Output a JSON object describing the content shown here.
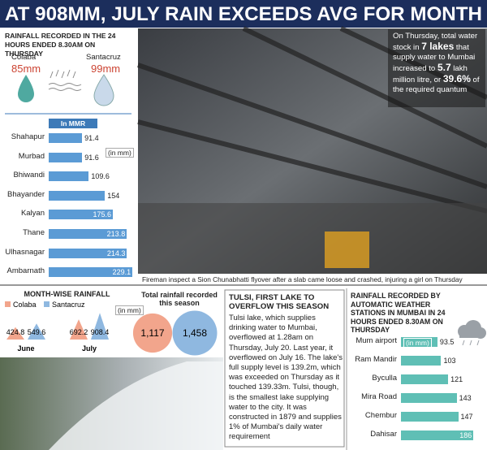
{
  "headline": "AT 908MM, JULY RAIN EXCEEDS AVG FOR MONTH",
  "left_panel": {
    "title": "RAINFALL RECORDED IN THE 24 HOURS ENDED 8.30AM ON THURSDAY",
    "stations": [
      {
        "name": "Colaba",
        "value": "85mm"
      },
      {
        "name": "Santacruz",
        "value": "99mm"
      }
    ],
    "mmr_label": "In MMR",
    "unit": "(in mm)",
    "color": "#5b9bd5",
    "categories": [
      "Shahapur",
      "Murbad",
      "Bhiwandi",
      "Bhayander",
      "Kalyan",
      "Thane",
      "Ulhasnagar",
      "Ambarnath"
    ],
    "values": [
      91.4,
      91.6,
      109.6,
      154,
      175.6,
      213.8,
      214.3,
      229.1
    ]
  },
  "photo": {
    "overlay": [
      "On Thursday, total water stock in ",
      "7 lakes",
      " that supply water to Mumbai increased to ",
      "5.7",
      " lakh million litre, or ",
      "39.6%",
      " of the required quantum"
    ],
    "caption": "Fireman inspect a Sion Chunabhatti flyover after a slab came loose and crashed, injuring a girl on Thursday"
  },
  "monthwise": {
    "title": "MONTH-WISE RAINFALL",
    "legend": [
      {
        "name": "Colaba",
        "color": "#f2a58c"
      },
      {
        "name": "Santacruz",
        "color": "#8fb8e0"
      }
    ],
    "unit": "(in mm)",
    "months": [
      {
        "name": "June",
        "values": [
          424.8,
          549.6
        ]
      },
      {
        "name": "July",
        "values": [
          692.2,
          908.4
        ]
      }
    ]
  },
  "season_total": {
    "title": "Total rainfall recorded this season",
    "values": [
      {
        "value": 1117,
        "label": "1,117"
      },
      {
        "value": 1458,
        "label": "1,458"
      }
    ]
  },
  "tulsi": {
    "title": "TULSI, FIRST LAKE TO OVERFLOW THIS SEASON",
    "body": "Tulsi lake, which supplies drinking water to Mumbai, overflowed at 1.28am on Thursday, July 20. Last year, it overflowed on July 16. The lake's full supply level is 139.2m, which was exceeded on Thursday as it touched 139.33m. Tulsi, though, is the smallest lake supplying water to the city. It was constructed in 1879 and supplies 1% of Mumbai's daily water requirement"
  },
  "weather_stations": {
    "title": "RAINFALL RECORDED BY AUTOMATIC WEATHER STATIONS IN MUMBAI IN 24 HOURS ENDED 8.30AM ON THURSDAY",
    "unit": "(in mm)",
    "color": "#5fbfb5",
    "categories": [
      "Mum airport",
      "Ram Mandir",
      "Byculla",
      "Mira Road",
      "Chembur",
      "Dahisar"
    ],
    "values": [
      93.5,
      103,
      121,
      143,
      147,
      186
    ]
  }
}
